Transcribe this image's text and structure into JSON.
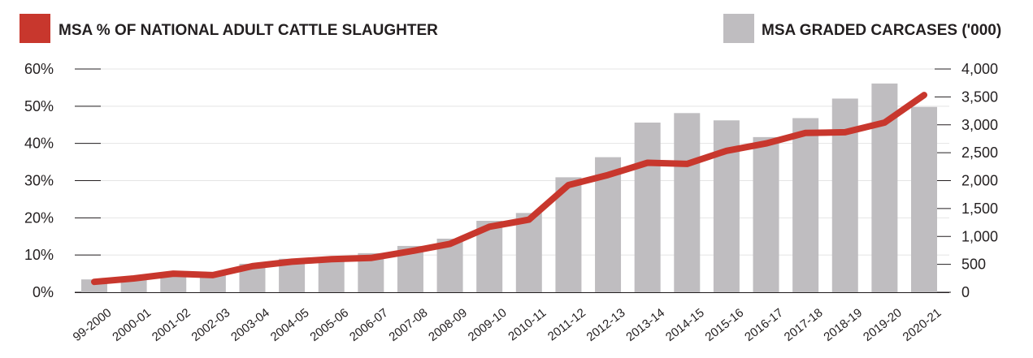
{
  "chart_data": {
    "type": "bar+line",
    "categories": [
      "99-2000",
      "2000-01",
      "2001-02",
      "2002-03",
      "2003-04",
      "2004-05",
      "2005-06",
      "2006-07",
      "2007-08",
      "2008-09",
      "2009-10",
      "2010-11",
      "2011-12",
      "2012-13",
      "2013-14",
      "2014-15",
      "2015-16",
      "2016-17",
      "2017-18",
      "2018-19",
      "2019-20",
      "2020-21"
    ],
    "series": [
      {
        "name": "MSA % OF NATIONAL ADULT CATTLE SLAUGHTER",
        "type": "line",
        "axis": "left",
        "color": "#c8372d",
        "values": [
          2.8,
          3.7,
          5.0,
          4.6,
          7.0,
          8.2,
          8.9,
          9.2,
          11.0,
          13.0,
          17.6,
          19.5,
          28.8,
          31.5,
          34.8,
          34.5,
          38.0,
          40.0,
          42.8,
          43.0,
          45.6,
          53.0
        ]
      },
      {
        "name": "MSA GRADED CARCASES ('000)",
        "type": "bar",
        "axis": "right",
        "color": "#bfbdc0",
        "values": [
          230,
          255,
          300,
          320,
          510,
          600,
          580,
          700,
          830,
          960,
          1280,
          1420,
          2060,
          2420,
          3040,
          3210,
          3080,
          2780,
          3120,
          3470,
          3740,
          3320
        ]
      }
    ],
    "y_left": {
      "ticks": [
        "0%",
        "10%",
        "20%",
        "30%",
        "40%",
        "50%",
        "60%"
      ],
      "min": 0,
      "max": 60
    },
    "y_right": {
      "ticks": [
        "0",
        "500",
        "1,000",
        "1,500",
        "2,000",
        "2,500",
        "3,000",
        "3,500",
        "4,000"
      ],
      "min": 0,
      "max": 4000
    },
    "legend_placement": "top",
    "grid": "horizontal"
  }
}
